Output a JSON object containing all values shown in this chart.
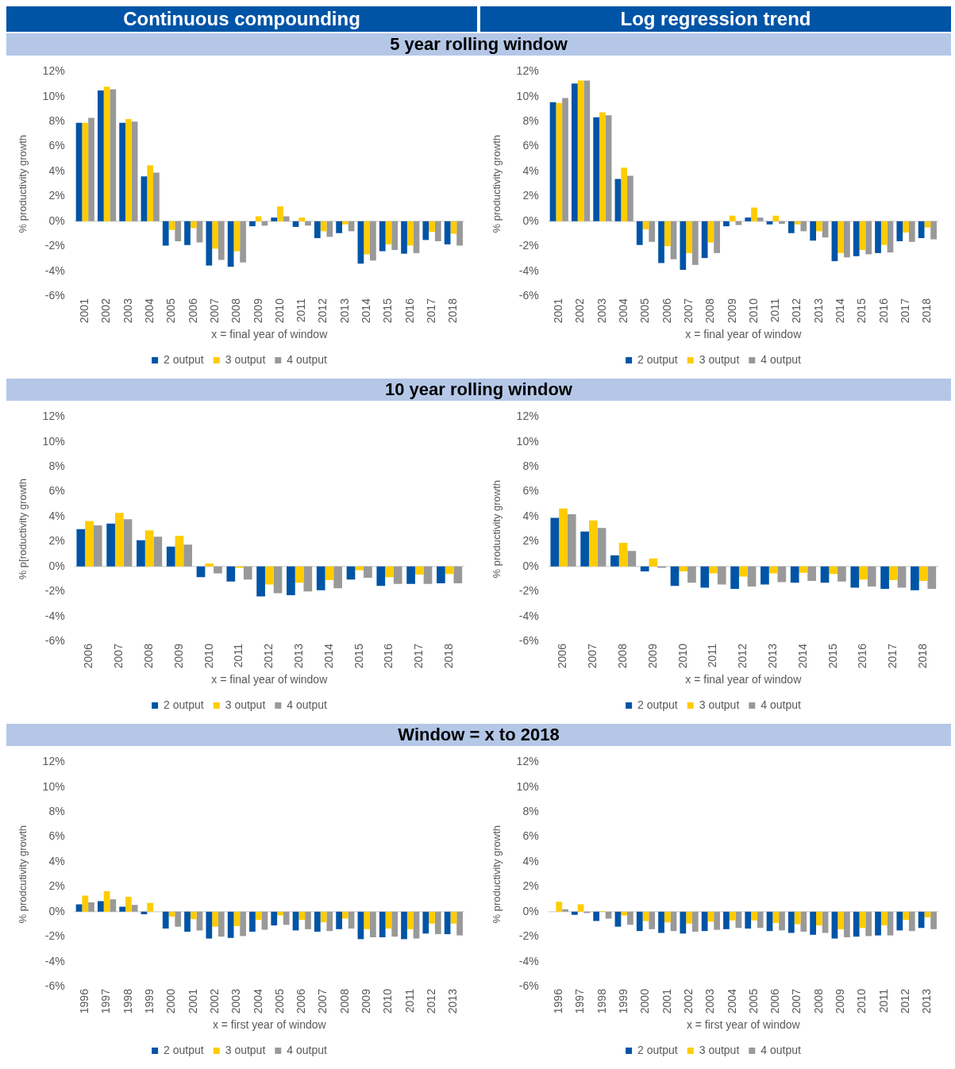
{
  "chart_data": [
    {
      "type": "bar",
      "title": "Continuous compounding",
      "subtitle": "5 year rolling window",
      "xlabel": "x = final year of window",
      "ylabel": "% productivity growth",
      "legend": "bottom",
      "ylim": [
        -6,
        12
      ],
      "yticks": [
        {
          "value": -6,
          "label": "-6%"
        },
        {
          "value": -4,
          "label": "-4%"
        },
        {
          "value": -2,
          "label": "-2%"
        },
        {
          "value": 0,
          "label": "0%"
        },
        {
          "value": 2,
          "label": "2%"
        },
        {
          "value": 4,
          "label": "4%"
        },
        {
          "value": 6,
          "label": "6%"
        },
        {
          "value": 8,
          "label": "8%"
        },
        {
          "value": 10,
          "label": "10%"
        },
        {
          "value": 12,
          "label": "12%"
        }
      ],
      "categories": [
        "2001",
        "2002",
        "2003",
        "2004",
        "2005",
        "2006",
        "2007",
        "2008",
        "2009",
        "2010",
        "2011",
        "2012",
        "2013",
        "2014",
        "2015",
        "2016",
        "2017",
        "2018"
      ],
      "series": [
        {
          "name": "2 output",
          "color": "#0054a6",
          "values": [
            7.9,
            10.5,
            7.9,
            3.6,
            -1.95,
            -1.9,
            -3.55,
            -3.65,
            -0.4,
            0.3,
            -0.45,
            -1.35,
            -0.95,
            -3.4,
            -2.4,
            -2.6,
            -1.5,
            -1.85
          ]
        },
        {
          "name": "3 output",
          "color": "#ffcc00",
          "values": [
            7.9,
            10.8,
            8.2,
            4.5,
            -0.7,
            -0.55,
            -2.2,
            -2.4,
            0.4,
            1.2,
            0.3,
            -0.8,
            -0.25,
            -2.65,
            -1.85,
            -1.95,
            -0.85,
            -1.0
          ]
        },
        {
          "name": "4 output",
          "color": "#999999",
          "values": [
            8.3,
            10.6,
            8.0,
            3.9,
            -1.6,
            -1.7,
            -3.1,
            -3.3,
            -0.35,
            0.4,
            -0.35,
            -1.25,
            -0.8,
            -3.15,
            -2.3,
            -2.55,
            -1.6,
            -1.95
          ]
        }
      ]
    },
    {
      "type": "bar",
      "title": "Log regression trend",
      "xlabel": "x = final year of window",
      "ylabel": "% productivity growth",
      "legend": "bottom",
      "ylim": [
        -6,
        12
      ],
      "yticks": [
        {
          "value": -6,
          "label": "-6%"
        },
        {
          "value": -4,
          "label": "-4%"
        },
        {
          "value": -2,
          "label": "-2%"
        },
        {
          "value": 0,
          "label": "0%"
        },
        {
          "value": 2,
          "label": "2%"
        },
        {
          "value": 4,
          "label": "4%"
        },
        {
          "value": 6,
          "label": "6%"
        },
        {
          "value": 8,
          "label": "8%"
        },
        {
          "value": 10,
          "label": "10%"
        },
        {
          "value": 12,
          "label": "12%"
        }
      ],
      "categories": [
        "2001",
        "2002",
        "2003",
        "2004",
        "2005",
        "2006",
        "2007",
        "2008",
        "2009",
        "2010",
        "2011",
        "2012",
        "2013",
        "2014",
        "2015",
        "2016",
        "2017",
        "2018"
      ],
      "series": [
        {
          "name": "2 output",
          "color": "#0054a6",
          "values": [
            9.55,
            11.05,
            8.35,
            3.4,
            -1.9,
            -3.35,
            -3.9,
            -2.95,
            -0.4,
            0.3,
            -0.25,
            -0.95,
            -1.55,
            -3.2,
            -2.8,
            -2.55,
            -1.6,
            -1.35
          ]
        },
        {
          "name": "3 output",
          "color": "#ffcc00",
          "values": [
            9.5,
            11.3,
            8.75,
            4.3,
            -0.65,
            -2.0,
            -2.55,
            -1.7,
            0.45,
            1.1,
            0.45,
            -0.25,
            -0.8,
            -2.55,
            -2.3,
            -1.9,
            -0.9,
            -0.5
          ]
        },
        {
          "name": "4 output",
          "color": "#999999",
          "values": [
            9.9,
            11.3,
            8.5,
            3.65,
            -1.65,
            -3.05,
            -3.5,
            -2.55,
            -0.3,
            0.3,
            -0.2,
            -0.8,
            -1.3,
            -2.9,
            -2.65,
            -2.5,
            -1.65,
            -1.45
          ]
        }
      ]
    },
    {
      "type": "bar",
      "subtitle": "10 year rolling window",
      "xlabel": "x = final year of window",
      "ylabel": "% p[roductivity growth",
      "legend": "bottom",
      "ylim": [
        -6,
        12
      ],
      "yticks": [
        {
          "value": -6,
          "label": "-6%"
        },
        {
          "value": -4,
          "label": "-4%"
        },
        {
          "value": -2,
          "label": "-2%"
        },
        {
          "value": 0,
          "label": "0%"
        },
        {
          "value": 2,
          "label": "2%"
        },
        {
          "value": 4,
          "label": "4%"
        },
        {
          "value": 6,
          "label": "6%"
        },
        {
          "value": 8,
          "label": "8%"
        },
        {
          "value": 10,
          "label": "10%"
        },
        {
          "value": 12,
          "label": "12%"
        }
      ],
      "categories": [
        "2006",
        "2007",
        "2008",
        "2009",
        "2010",
        "2011",
        "2012",
        "2013",
        "2014",
        "2015",
        "2016",
        "2017",
        "2018"
      ],
      "series": [
        {
          "name": "2 output",
          "color": "#0054a6",
          "values": [
            3.0,
            3.45,
            2.1,
            1.6,
            -0.85,
            -1.2,
            -2.4,
            -2.3,
            -1.9,
            -1.05,
            -1.55,
            -1.4,
            -1.35
          ]
        },
        {
          "name": "3 output",
          "color": "#ffcc00",
          "values": [
            3.65,
            4.3,
            2.9,
            2.45,
            0.25,
            -0.1,
            -1.45,
            -1.3,
            -1.1,
            -0.3,
            -0.85,
            -0.65,
            -0.6
          ]
        },
        {
          "name": "4 output",
          "color": "#999999",
          "values": [
            3.3,
            3.8,
            2.4,
            1.75,
            -0.55,
            -1.05,
            -2.15,
            -2.0,
            -1.75,
            -0.9,
            -1.4,
            -1.4,
            -1.35
          ]
        }
      ]
    },
    {
      "type": "bar",
      "xlabel": "x = final year of window",
      "ylabel": "% productivity growth",
      "legend": "bottom",
      "ylim": [
        -6,
        12
      ],
      "yticks": [
        {
          "value": -6,
          "label": "-6%"
        },
        {
          "value": -4,
          "label": "-4%"
        },
        {
          "value": -2,
          "label": "-2%"
        },
        {
          "value": 0,
          "label": "0%"
        },
        {
          "value": 2,
          "label": "2%"
        },
        {
          "value": 4,
          "label": "4%"
        },
        {
          "value": 6,
          "label": "6%"
        },
        {
          "value": 8,
          "label": "8%"
        },
        {
          "value": 10,
          "label": "10%"
        },
        {
          "value": 12,
          "label": "12%"
        }
      ],
      "categories": [
        "2006",
        "2007",
        "2008",
        "2009",
        "2010",
        "2011",
        "2012",
        "2013",
        "2014",
        "2015",
        "2016",
        "2017",
        "2018"
      ],
      "series": [
        {
          "name": "2 output",
          "color": "#0054a6",
          "values": [
            3.9,
            2.8,
            0.9,
            -0.4,
            -1.55,
            -1.7,
            -1.8,
            -1.45,
            -1.3,
            -1.3,
            -1.7,
            -1.8,
            -1.9
          ]
        },
        {
          "name": "3 output",
          "color": "#ffcc00",
          "values": [
            4.65,
            3.7,
            1.9,
            0.65,
            -0.4,
            -0.55,
            -0.8,
            -0.55,
            -0.5,
            -0.6,
            -1.05,
            -1.1,
            -1.15
          ]
        },
        {
          "name": "4 output",
          "color": "#999999",
          "values": [
            4.2,
            3.1,
            1.25,
            -0.1,
            -1.3,
            -1.45,
            -1.6,
            -1.25,
            -1.15,
            -1.2,
            -1.6,
            -1.7,
            -1.8
          ]
        }
      ]
    },
    {
      "type": "bar",
      "subtitle": "Window = x to 2018",
      "xlabel": "x = first year of window",
      "ylabel": "% prodcutivity growth",
      "legend": "bottom",
      "ylim": [
        -6,
        12
      ],
      "yticks": [
        {
          "value": -6,
          "label": "-6%"
        },
        {
          "value": -4,
          "label": "-4%"
        },
        {
          "value": -2,
          "label": "-2%"
        },
        {
          "value": 0,
          "label": "0%"
        },
        {
          "value": 2,
          "label": "2%"
        },
        {
          "value": 4,
          "label": "4%"
        },
        {
          "value": 6,
          "label": "6%"
        },
        {
          "value": 8,
          "label": "8%"
        },
        {
          "value": 10,
          "label": "10%"
        },
        {
          "value": 12,
          "label": "12%"
        }
      ],
      "categories": [
        "1996",
        "1997",
        "1998",
        "1999",
        "2000",
        "2001",
        "2002",
        "2003",
        "2004",
        "2005",
        "2006",
        "2007",
        "2008",
        "2009",
        "2010",
        "2011",
        "2012",
        "2013"
      ],
      "series": [
        {
          "name": "2 output",
          "color": "#0054a6",
          "values": [
            0.6,
            0.85,
            0.4,
            -0.2,
            -1.35,
            -1.6,
            -2.15,
            -2.1,
            -1.6,
            -1.1,
            -1.5,
            -1.6,
            -1.4,
            -2.2,
            -2.05,
            -2.2,
            -1.75,
            -1.8
          ]
        },
        {
          "name": "3 output",
          "color": "#ffcc00",
          "values": [
            1.3,
            1.65,
            1.2,
            0.7,
            -0.4,
            -0.6,
            -1.2,
            -1.15,
            -0.65,
            -0.3,
            -0.65,
            -0.85,
            -0.55,
            -1.4,
            -1.35,
            -1.4,
            -0.95,
            -0.95
          ]
        },
        {
          "name": "4 output",
          "color": "#999999",
          "values": [
            0.75,
            1.0,
            0.55,
            0,
            -1.2,
            -1.5,
            -2.0,
            -1.95,
            -1.45,
            -1.05,
            -1.4,
            -1.55,
            -1.35,
            -2.05,
            -2.0,
            -2.15,
            -1.8,
            -1.9
          ]
        }
      ]
    },
    {
      "type": "bar",
      "xlabel": "x = first year of window",
      "ylabel": "% productivity growth",
      "legend": "bottom",
      "ylim": [
        -6,
        12
      ],
      "yticks": [
        {
          "value": -6,
          "label": "-6%"
        },
        {
          "value": -4,
          "label": "-4%"
        },
        {
          "value": -2,
          "label": "-2%"
        },
        {
          "value": 0,
          "label": "0%"
        },
        {
          "value": 2,
          "label": "2%"
        },
        {
          "value": 4,
          "label": "4%"
        },
        {
          "value": 6,
          "label": "6%"
        },
        {
          "value": 8,
          "label": "8%"
        },
        {
          "value": 10,
          "label": "10%"
        },
        {
          "value": 12,
          "label": "12%"
        }
      ],
      "categories": [
        "1996",
        "1997",
        "1998",
        "1999",
        "2000",
        "2001",
        "2002",
        "2003",
        "2004",
        "2005",
        "2006",
        "2007",
        "2008",
        "2009",
        "2010",
        "2011",
        "2012",
        "2013"
      ],
      "series": [
        {
          "name": "2 output",
          "color": "#0054a6",
          "values": [
            0,
            -0.25,
            -0.75,
            -1.2,
            -1.55,
            -1.7,
            -1.75,
            -1.55,
            -1.4,
            -1.35,
            -1.55,
            -1.7,
            -1.85,
            -2.15,
            -2.0,
            -1.9,
            -1.5,
            -1.3
          ]
        },
        {
          "name": "3 output",
          "color": "#ffcc00",
          "values": [
            0.8,
            0.6,
            0.05,
            -0.3,
            -0.75,
            -0.85,
            -0.95,
            -0.8,
            -0.7,
            -0.7,
            -0.9,
            -1.0,
            -1.1,
            -1.4,
            -1.3,
            -1.1,
            -0.65,
            -0.45
          ]
        },
        {
          "name": "4 output",
          "color": "#999999",
          "values": [
            0.2,
            -0.1,
            -0.55,
            -1.05,
            -1.4,
            -1.55,
            -1.6,
            -1.45,
            -1.3,
            -1.3,
            -1.5,
            -1.6,
            -1.7,
            -2.05,
            -1.95,
            -1.9,
            -1.55,
            -1.4
          ]
        }
      ]
    }
  ]
}
